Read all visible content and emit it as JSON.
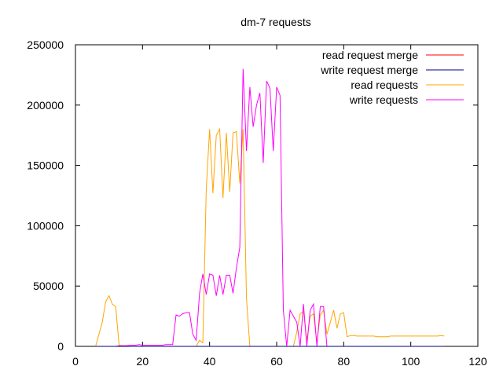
{
  "chart_data": {
    "type": "line",
    "title": "dm-7 requests",
    "xlim": [
      0,
      120
    ],
    "ylim": [
      0,
      250000
    ],
    "x_ticks": [
      0,
      20,
      40,
      60,
      80,
      100,
      120
    ],
    "y_ticks": [
      0,
      50000,
      100000,
      150000,
      200000,
      250000
    ],
    "grid": false,
    "legend_position": "top-right",
    "series": [
      {
        "name": "read request merge",
        "color": "#ff0000",
        "x": [
          6,
          110
        ],
        "y": [
          0,
          0
        ]
      },
      {
        "name": "write request merge",
        "color": "#000080",
        "x": [
          6,
          110
        ],
        "y": [
          0,
          0
        ]
      },
      {
        "name": "read requests",
        "color": "#ffa500",
        "x": [
          6,
          7,
          8,
          9,
          10,
          11,
          12,
          13,
          14,
          15,
          16,
          17,
          18,
          19,
          20,
          21,
          22,
          23,
          24,
          25,
          26,
          27,
          28,
          29,
          30,
          31,
          32,
          33,
          34,
          35,
          36,
          37,
          38,
          39,
          40,
          41,
          42,
          43,
          44,
          45,
          46,
          47,
          48,
          49,
          50,
          51,
          52,
          53,
          54,
          55,
          56,
          57,
          58,
          59,
          60,
          61,
          62,
          63,
          64,
          65,
          66,
          67,
          68,
          69,
          70,
          71,
          72,
          73,
          74,
          75,
          76,
          77,
          78,
          79,
          80,
          81,
          82,
          83,
          84,
          85,
          86,
          87,
          88,
          89,
          90,
          91,
          92,
          93,
          94,
          95,
          96,
          97,
          98,
          99,
          100,
          101,
          102,
          103,
          104,
          105,
          106,
          107,
          108,
          109,
          110
        ],
        "y": [
          0,
          10000,
          20000,
          37000,
          42000,
          35000,
          33000,
          1000,
          500,
          500,
          0,
          0,
          0,
          0,
          0,
          0,
          0,
          0,
          0,
          0,
          0,
          0,
          0,
          0,
          0,
          0,
          0,
          0,
          0,
          0,
          0,
          5000,
          3000,
          130000,
          180000,
          127000,
          175000,
          180000,
          123000,
          177000,
          128000,
          177000,
          178000,
          135000,
          180000,
          40000,
          0,
          0,
          0,
          0,
          0,
          0,
          0,
          0,
          0,
          0,
          0,
          0,
          0,
          0,
          12000,
          27000,
          29000,
          5000,
          25000,
          27000,
          3000,
          26000,
          30000,
          10000,
          20000,
          30000,
          15000,
          27000,
          28000,
          8000,
          9000,
          9000,
          8500,
          8500,
          8500,
          8500,
          8500,
          8500,
          8000,
          8000,
          8000,
          8000,
          8500,
          8500,
          8500,
          8500,
          8500,
          8500,
          8500,
          8500,
          8500,
          8500,
          8500,
          8500,
          8500,
          8500,
          8500,
          9000,
          8500
        ],
        "_note": ""
      },
      {
        "name": "write requests",
        "color": "#ff00ff",
        "x": [
          6,
          7,
          8,
          9,
          10,
          11,
          12,
          13,
          14,
          15,
          16,
          17,
          18,
          19,
          20,
          21,
          22,
          23,
          24,
          25,
          26,
          27,
          28,
          29,
          30,
          31,
          32,
          33,
          34,
          35,
          36,
          37,
          38,
          39,
          40,
          41,
          42,
          43,
          44,
          45,
          46,
          47,
          48,
          49,
          50,
          51,
          52,
          53,
          54,
          55,
          56,
          57,
          58,
          59,
          60,
          61,
          62,
          63,
          64,
          65,
          66,
          67,
          68,
          69,
          70,
          71,
          72,
          73,
          74,
          75,
          76,
          77,
          78,
          79
        ],
        "y": [
          0,
          0,
          0,
          0,
          0,
          0,
          0,
          500,
          500,
          500,
          800,
          1000,
          1000,
          1500,
          1000,
          1000,
          1000,
          1000,
          1000,
          1000,
          1000,
          1500,
          1500,
          1500,
          26000,
          25000,
          27000,
          28000,
          28000,
          10000,
          5000,
          44000,
          60000,
          43000,
          60000,
          59000,
          42000,
          59000,
          43000,
          59000,
          59000,
          44000,
          65000,
          82000,
          230000,
          162000,
          215000,
          182000,
          200000,
          210000,
          152000,
          220000,
          214000,
          162000,
          215000,
          208000,
          30000,
          0,
          30000,
          25000,
          20000,
          0,
          35000,
          0,
          30000,
          35000,
          0,
          33000,
          33000,
          0,
          0,
          0,
          0,
          0
        ]
      }
    ]
  }
}
